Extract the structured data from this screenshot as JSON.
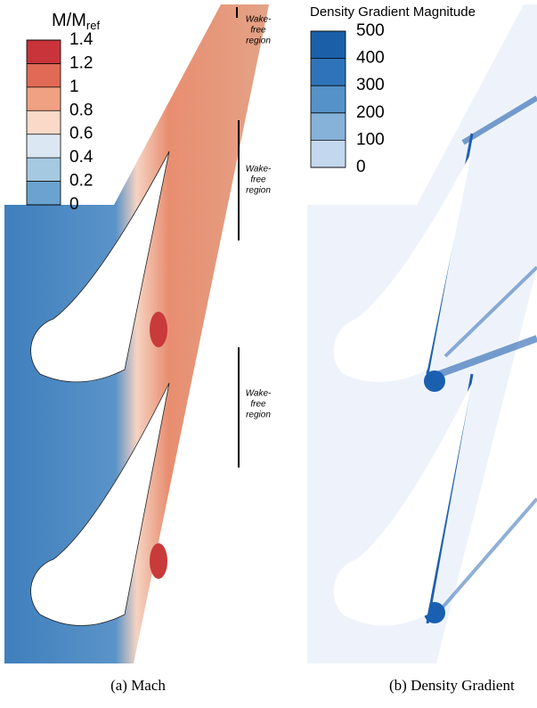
{
  "panels": [
    {
      "colorbar": {
        "title": "M/M",
        "title_sub": "ref",
        "ticks": [
          1.4,
          1.2,
          1,
          0.8,
          0.6,
          0.4,
          0.2,
          0
        ]
      },
      "annotations": [
        [
          "Wake-",
          "free",
          "region"
        ],
        [
          "Wake-",
          "free",
          "region"
        ],
        [
          "Wake-",
          "free",
          "region"
        ]
      ],
      "caption": "(a) Mach"
    },
    {
      "colorbar": {
        "title": "Density Gradient Magnitude",
        "ticks": [
          500,
          400,
          300,
          200,
          100,
          0
        ]
      },
      "caption": "(b) Density Gradient"
    }
  ]
}
